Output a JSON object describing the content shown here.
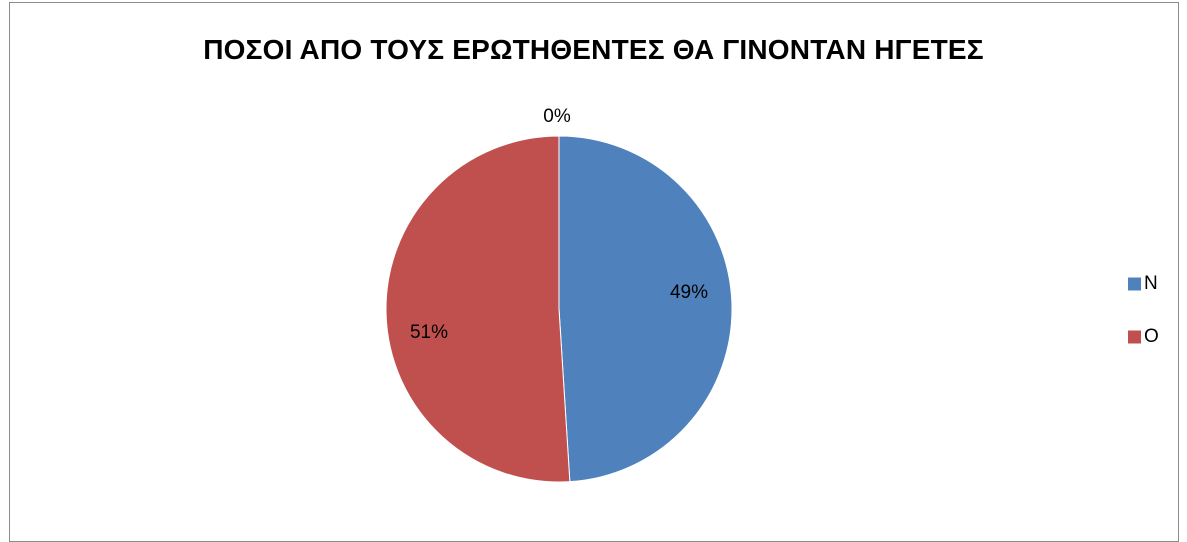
{
  "chart_data": {
    "type": "pie",
    "title": "ΠΟΣΟΙ ΑΠΟ ΤΟΥΣ ΕΡΩΤΗΘΕΝΤΕΣ ΘΑ ΓΙΝΟΝΤΑΝ ΗΓΕΤΕΣ",
    "categories": [
      "Ν",
      "Ο",
      ""
    ],
    "values": [
      49,
      51,
      0
    ],
    "data_labels": [
      "49%",
      "51%",
      "0%"
    ],
    "colors": [
      "#4f81bd",
      "#c0504d",
      "#9bbb59"
    ],
    "legend": {
      "placement": "right",
      "entries": [
        "Ν",
        "Ο"
      ]
    }
  }
}
